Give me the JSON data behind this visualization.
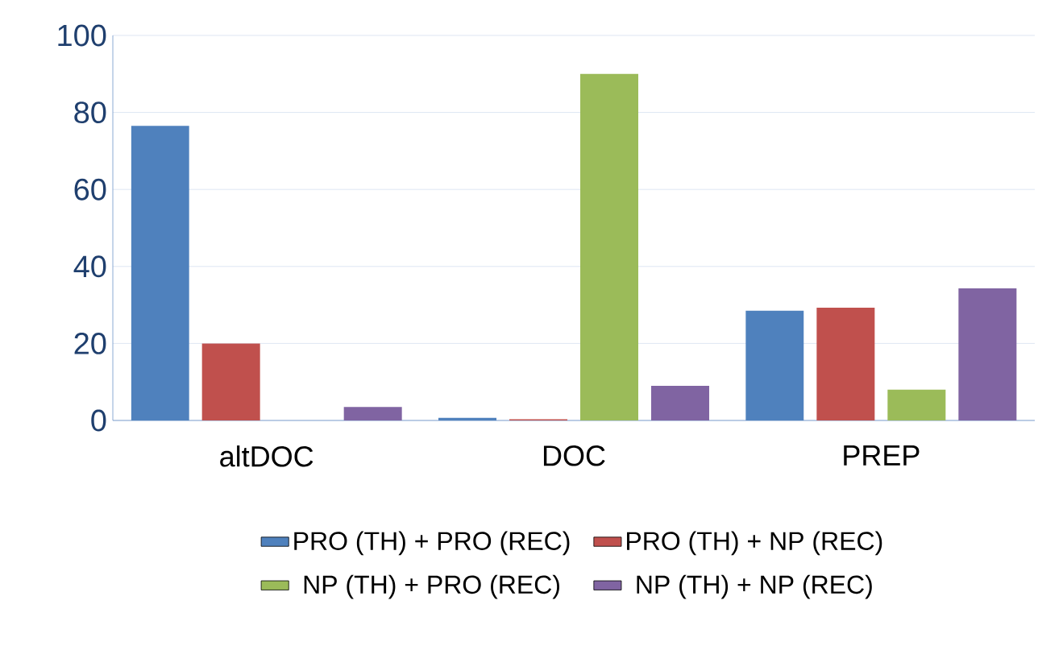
{
  "chart_data": {
    "type": "bar",
    "categories": [
      "altDOC",
      "DOC",
      "PREP"
    ],
    "series": [
      {
        "name": "PRO (TH) + PRO (REC)",
        "color": "#4f81bd",
        "values": [
          76.5,
          0.7,
          28.5
        ]
      },
      {
        "name": "PRO (TH) + NP (REC)",
        "color": "#c0504d",
        "values": [
          20,
          0.3,
          29.3
        ]
      },
      {
        "name": "NP (TH) + PRO (REC)",
        "color": "#9bbb59",
        "values": [
          0,
          90,
          8
        ]
      },
      {
        "name": "NP (TH) + NP (REC)",
        "color": "#8064a2",
        "values": [
          3.5,
          9,
          34.3
        ]
      }
    ],
    "ylim": [
      0,
      100
    ],
    "yticks": [
      0,
      20,
      40,
      60,
      80,
      100
    ],
    "grid": "y",
    "legend": "bottom"
  }
}
